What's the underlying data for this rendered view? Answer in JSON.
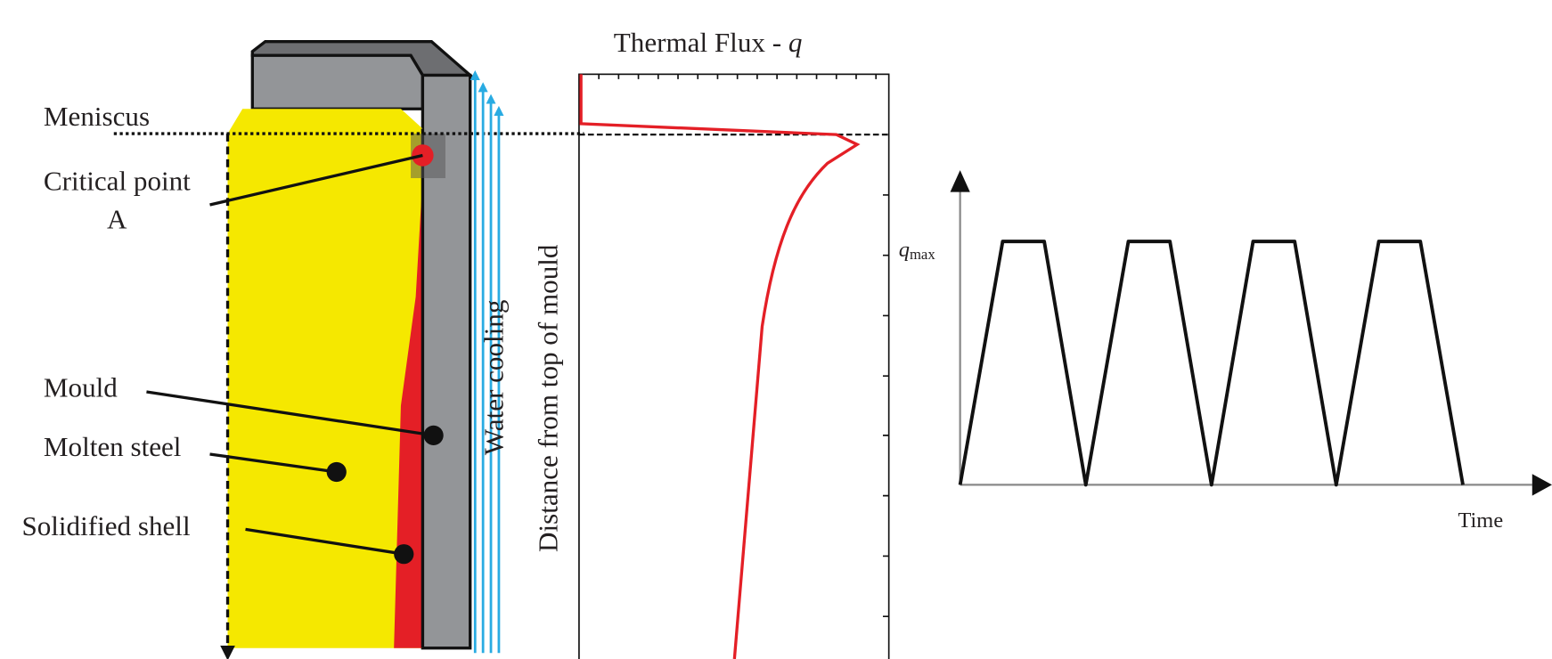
{
  "labels": {
    "meniscus": "Meniscus",
    "critical_point": "Critical point",
    "critical_point_letter": "A",
    "mould": "Mould",
    "molten_steel": "Molten steel",
    "solidified_shell": "Solidified shell",
    "water_cooling": "Water cooling"
  },
  "flux_plot": {
    "title": "Thermal Flux - ",
    "title_symbol": "q",
    "y_label": "Distance from top of mould"
  },
  "time_plot": {
    "y_symbol": "q",
    "y_subscript": "max",
    "x_label": "Time"
  }
}
